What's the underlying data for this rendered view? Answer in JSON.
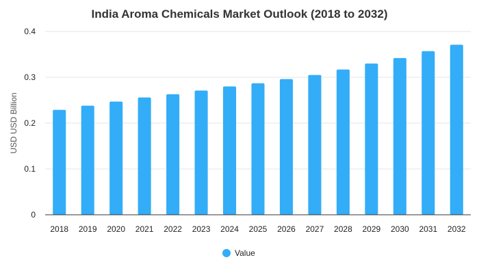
{
  "chart_data": {
    "type": "bar",
    "title": "India Aroma Chemicals Market Outlook (2018 to 2032)",
    "xlabel": "",
    "ylabel": "USD USD Billion",
    "categories": [
      "2018",
      "2019",
      "2020",
      "2021",
      "2022",
      "2023",
      "2024",
      "2025",
      "2026",
      "2027",
      "2028",
      "2029",
      "2030",
      "2031",
      "2032"
    ],
    "series": [
      {
        "name": "Value",
        "color": "#33adf7",
        "values": [
          0.229,
          0.238,
          0.247,
          0.256,
          0.263,
          0.271,
          0.28,
          0.287,
          0.296,
          0.305,
          0.317,
          0.33,
          0.342,
          0.357,
          0.371
        ]
      }
    ],
    "ylim": [
      0,
      0.4
    ],
    "yticks": [
      "0",
      "0.1",
      "0.2",
      "0.3",
      "0.4"
    ],
    "grid": true,
    "legend_position": "bottom-center"
  }
}
